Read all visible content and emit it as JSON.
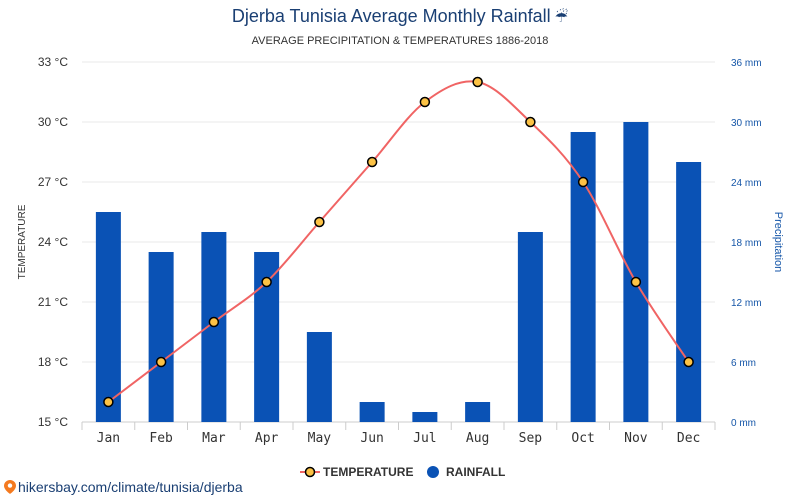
{
  "title": "Djerba Tunisia Average Monthly Rainfall",
  "title_icon": "umbrella-rain-icon",
  "subtitle": "AVERAGE PRECIPITATION & TEMPERATURES 1886-2018",
  "footer": {
    "text": "hikersbay.com/climate/tunisia/djerba",
    "icon": "map-pin-icon"
  },
  "colors": {
    "temperature_line": "#f06464",
    "rainfall_bar": "#0a52b5",
    "title": "#1a3f73",
    "right_axis": "#1556a8"
  },
  "chart_data": {
    "type": "bar",
    "categories": [
      "Jan",
      "Feb",
      "Mar",
      "Apr",
      "May",
      "Jun",
      "Jul",
      "Aug",
      "Sep",
      "Oct",
      "Nov",
      "Dec"
    ],
    "series": [
      {
        "name": "TEMPERATURE",
        "type": "line",
        "axis": "left",
        "values": [
          16,
          18,
          20,
          22,
          25,
          28,
          31,
          32,
          30,
          27,
          22,
          18
        ]
      },
      {
        "name": "RAINFALL",
        "type": "bar",
        "axis": "right",
        "values": [
          21,
          17,
          19,
          17,
          9,
          2,
          1,
          2,
          19,
          29,
          30,
          26
        ]
      }
    ],
    "ylabel_left": "TEMPERATURE",
    "ylabel_right": "Precipitation",
    "ylim_left": [
      15,
      33
    ],
    "ylim_right": [
      0,
      36
    ],
    "yticks_left": [
      "15 °C",
      "18 °C",
      "21 °C",
      "24 °C",
      "27 °C",
      "30 °C",
      "33 °C"
    ],
    "yticks_right": [
      "0 mm",
      "6 mm",
      "12 mm",
      "18 mm",
      "24 mm",
      "30 mm",
      "36 mm"
    ],
    "grid": true,
    "legend_position": "bottom-center"
  }
}
